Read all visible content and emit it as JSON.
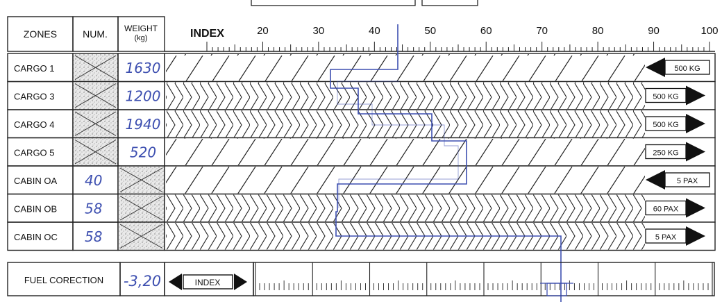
{
  "headers": {
    "zones": "ZONES",
    "num": "NUM.",
    "weight_line1": "WEIGHT",
    "weight_line2": "(kg)",
    "index": "INDEX"
  },
  "scale_ticks": [
    "20",
    "30",
    "40",
    "50",
    "60",
    "70",
    "80",
    "90",
    "100"
  ],
  "rows": [
    {
      "zone": "CARGO 1",
      "num": "",
      "weight": "1630",
      "unit": "500 KG",
      "arrow": "left"
    },
    {
      "zone": "CARGO 3",
      "num": "",
      "weight": "1200",
      "unit": "500 KG",
      "arrow": "right"
    },
    {
      "zone": "CARGO 4",
      "num": "",
      "weight": "1940",
      "unit": "500 KG",
      "arrow": "right"
    },
    {
      "zone": "CARGO 5",
      "num": "",
      "weight": "520",
      "unit": "250 KG",
      "arrow": "right"
    },
    {
      "zone": "CABIN OA",
      "num": "40",
      "weight": "",
      "unit": "5 PAX",
      "arrow": "left"
    },
    {
      "zone": "CABIN OB",
      "num": "58",
      "weight": "",
      "unit": "60 PAX",
      "arrow": "right"
    },
    {
      "zone": "CABIN OC",
      "num": "58",
      "weight": "",
      "unit": "5 PAX",
      "arrow": "right"
    }
  ],
  "fuel": {
    "label": "FUEL CORECTION",
    "value": "-3,20",
    "index_label": "INDEX"
  },
  "colors": {
    "ink": "#111111",
    "pen": "#3d4fb0",
    "paper": "#ffffff"
  }
}
